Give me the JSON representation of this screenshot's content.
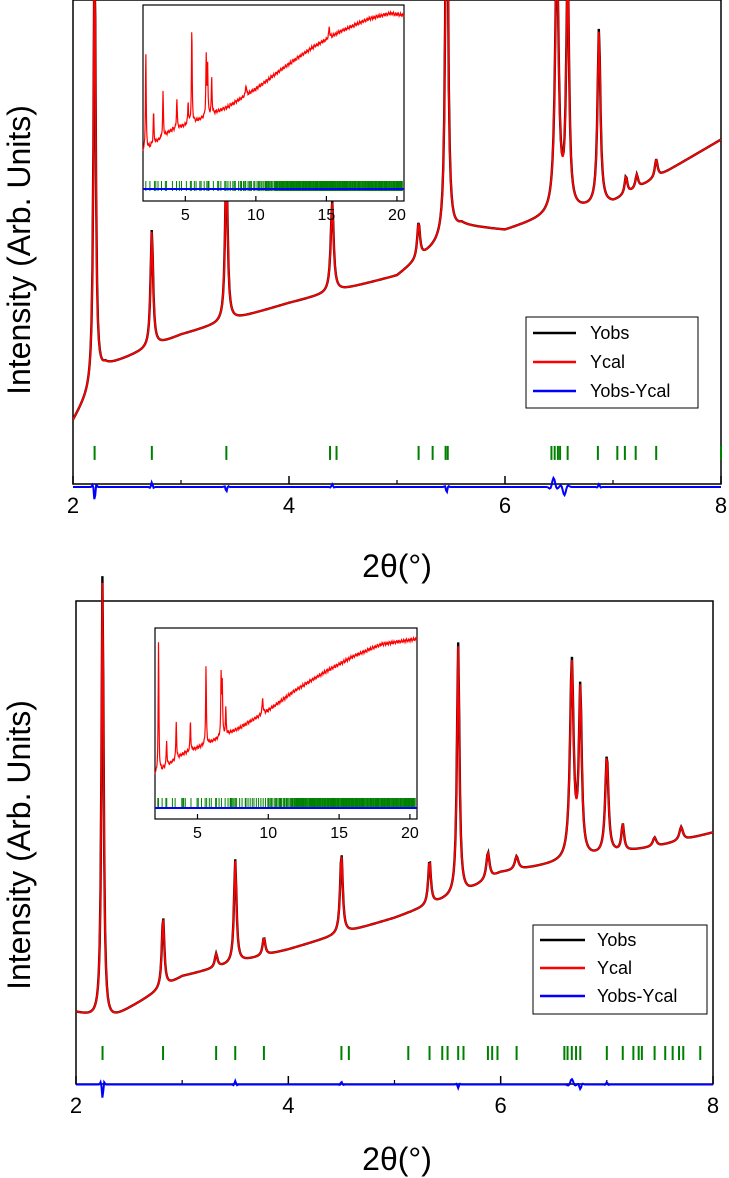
{
  "chart_data": [
    {
      "type": "line",
      "xlabel": "2θ(°)",
      "ylabel": "Intensity (Arb. Units)",
      "xlim": [
        2,
        8
      ],
      "xticks": [
        "2",
        "4",
        "6",
        "8"
      ],
      "grid": false,
      "legend_position": "right",
      "series": [
        {
          "name": "Yobs",
          "color": "#000000",
          "background": [
            [
              2.0,
              0.09
            ],
            [
              2.3,
              0.21
            ],
            [
              3.0,
              0.28
            ],
            [
              4.0,
              0.35
            ],
            [
              5.0,
              0.41
            ],
            [
              5.6,
              0.52
            ],
            [
              6.0,
              0.51
            ],
            [
              6.4,
              0.54
            ],
            [
              7.0,
              0.57
            ],
            [
              8.0,
              0.71
            ]
          ],
          "peaks": [
            [
              2.2,
              0.99,
              0.012
            ],
            [
              2.73,
              0.26,
              0.014
            ],
            [
              3.42,
              0.36,
              0.014
            ],
            [
              4.4,
              0.2,
              0.016
            ],
            [
              5.2,
              0.08,
              0.015
            ],
            [
              5.46,
              0.98,
              0.014
            ],
            [
              6.48,
              0.58,
              0.02
            ],
            [
              6.58,
              0.52,
              0.016
            ],
            [
              6.87,
              0.39,
              0.016
            ],
            [
              7.12,
              0.04,
              0.015
            ],
            [
              7.22,
              0.03,
              0.015
            ],
            [
              7.4,
              0.04,
              0.015
            ]
          ]
        },
        {
          "name": "Ycal",
          "color": "#ff0000"
        },
        {
          "name": "Yobs-Ycal",
          "color": "#0000ff",
          "baseline": -0.055,
          "features": [
            [
              2.2,
              -0.03,
              0.015
            ],
            [
              2.73,
              0.01,
              0.015
            ],
            [
              3.42,
              -0.01,
              0.015
            ],
            [
              4.4,
              0.006,
              0.015
            ],
            [
              5.46,
              -0.012,
              0.015
            ],
            [
              6.45,
              0.02,
              0.03
            ],
            [
              6.55,
              -0.018,
              0.03
            ],
            [
              6.87,
              0.006,
              0.015
            ]
          ]
        }
      ],
      "reflections": {
        "color": "#008000",
        "y": 0.02,
        "x": [
          2.2,
          2.73,
          3.42,
          4.38,
          4.44,
          5.2,
          5.33,
          5.45,
          5.47,
          6.43,
          6.46,
          6.49,
          6.51,
          6.58,
          6.86,
          7.04,
          7.11,
          7.21,
          7.4,
          8.0
        ]
      },
      "inset": {
        "xlim": [
          2,
          20.5
        ],
        "xticks": [
          "5",
          "10",
          "15",
          "20"
        ],
        "background": [
          [
            2,
            0.2
          ],
          [
            4,
            0.32
          ],
          [
            6,
            0.38
          ],
          [
            8,
            0.45
          ],
          [
            10,
            0.55
          ],
          [
            12,
            0.67
          ],
          [
            14,
            0.78
          ],
          [
            16,
            0.87
          ],
          [
            18,
            0.94
          ],
          [
            19.5,
            0.97
          ],
          [
            20.5,
            0.96
          ]
        ],
        "peaks": [
          [
            2.2,
            0.55,
            0.03
          ],
          [
            2.75,
            0.18,
            0.03
          ],
          [
            3.42,
            0.25,
            0.03
          ],
          [
            4.4,
            0.17,
            0.03
          ],
          [
            5.2,
            0.12,
            0.03
          ],
          [
            5.46,
            0.52,
            0.03
          ],
          [
            6.48,
            0.33,
            0.03
          ],
          [
            6.58,
            0.28,
            0.03
          ],
          [
            6.87,
            0.2,
            0.03
          ],
          [
            9.3,
            0.06,
            0.04
          ],
          [
            15.2,
            0.06,
            0.04
          ]
        ]
      }
    },
    {
      "type": "line",
      "xlabel": "2θ(°)",
      "ylabel": "Intensity (Arb. Units)",
      "xlim": [
        2,
        8
      ],
      "xticks": [
        "2",
        "4",
        "6",
        "8"
      ],
      "grid": false,
      "legend_position": "bottom-right",
      "series": [
        {
          "name": "Yobs",
          "color": "#000000",
          "background": [
            [
              2.0,
              0.11
            ],
            [
              2.3,
              0.09
            ],
            [
              3.0,
              0.19
            ],
            [
              4.0,
              0.25
            ],
            [
              5.0,
              0.32
            ],
            [
              5.7,
              0.38
            ],
            [
              6.0,
              0.42
            ],
            [
              6.5,
              0.44
            ],
            [
              7.0,
              0.46
            ],
            [
              7.5,
              0.48
            ],
            [
              8.0,
              0.51
            ]
          ],
          "peaks": [
            [
              2.25,
              1.0,
              0.012
            ],
            [
              2.82,
              0.16,
              0.014
            ],
            [
              3.32,
              0.03,
              0.015
            ],
            [
              3.5,
              0.23,
              0.014
            ],
            [
              3.77,
              0.04,
              0.015
            ],
            [
              4.5,
              0.18,
              0.015
            ],
            [
              5.33,
              0.1,
              0.015
            ],
            [
              5.6,
              0.56,
              0.014
            ],
            [
              5.88,
              0.06,
              0.018
            ],
            [
              6.15,
              0.03,
              0.02
            ],
            [
              6.67,
              0.44,
              0.02
            ],
            [
              6.75,
              0.37,
              0.016
            ],
            [
              7.0,
              0.22,
              0.018
            ],
            [
              7.15,
              0.06,
              0.015
            ],
            [
              7.45,
              0.02,
              0.02
            ],
            [
              7.7,
              0.03,
              0.02
            ]
          ]
        },
        {
          "name": "Ycal",
          "color": "#ff0000"
        },
        {
          "name": "Yobs-Ycal",
          "color": "#0000ff",
          "baseline": -0.05,
          "features": [
            [
              2.25,
              -0.03,
              0.015
            ],
            [
              3.5,
              0.008,
              0.015
            ],
            [
              4.5,
              0.006,
              0.015
            ],
            [
              5.6,
              -0.008,
              0.015
            ],
            [
              6.67,
              0.012,
              0.03
            ],
            [
              6.75,
              -0.01,
              0.02
            ],
            [
              7.0,
              0.005,
              0.015
            ]
          ]
        }
      ],
      "reflections": {
        "color": "#008000",
        "y": 0.02,
        "x": [
          2.25,
          2.82,
          3.32,
          3.5,
          3.77,
          4.5,
          4.57,
          5.13,
          5.33,
          5.45,
          5.5,
          5.6,
          5.65,
          5.88,
          5.92,
          5.97,
          6.15,
          6.6,
          6.63,
          6.67,
          6.71,
          6.75,
          7.0,
          7.15,
          7.25,
          7.3,
          7.33,
          7.45,
          7.55,
          7.62,
          7.68,
          7.72,
          7.88
        ]
      },
      "inset": {
        "xlim": [
          2,
          20.5
        ],
        "xticks": [
          "5",
          "10",
          "15",
          "20"
        ],
        "background": [
          [
            2,
            0.18
          ],
          [
            4,
            0.3
          ],
          [
            6,
            0.37
          ],
          [
            8,
            0.45
          ],
          [
            10,
            0.55
          ],
          [
            12,
            0.67
          ],
          [
            14,
            0.77
          ],
          [
            16,
            0.86
          ],
          [
            18,
            0.93
          ],
          [
            20.5,
            0.96
          ]
        ],
        "peaks": [
          [
            2.25,
            0.75,
            0.03
          ],
          [
            2.82,
            0.15,
            0.03
          ],
          [
            3.5,
            0.22,
            0.03
          ],
          [
            4.5,
            0.17,
            0.03
          ],
          [
            5.6,
            0.45,
            0.03
          ],
          [
            6.67,
            0.35,
            0.03
          ],
          [
            6.75,
            0.3,
            0.03
          ],
          [
            7.0,
            0.15,
            0.03
          ],
          [
            9.6,
            0.09,
            0.04
          ]
        ]
      }
    }
  ]
}
